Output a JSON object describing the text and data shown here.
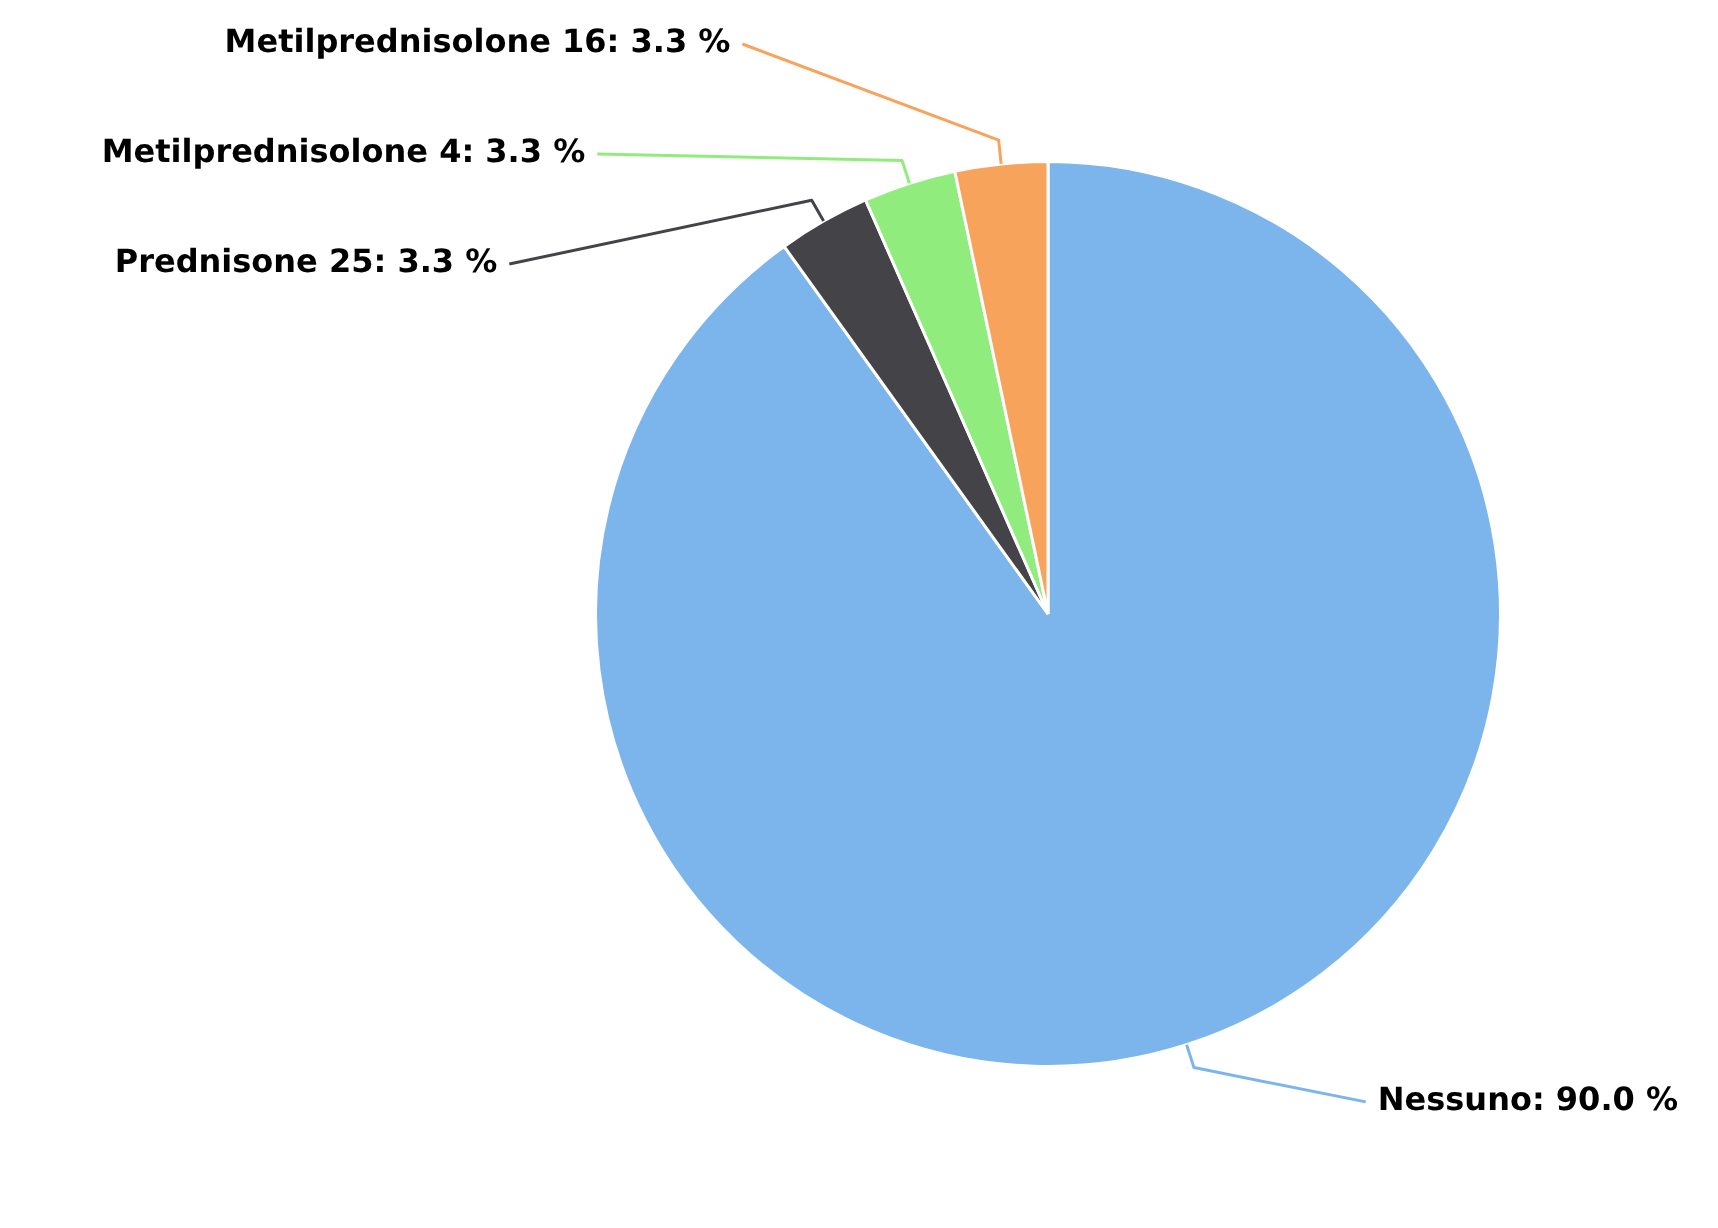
{
  "chart_data": {
    "type": "pie",
    "categories": [
      "Nessuno",
      "Prednisone 25",
      "Metilprednisolone 4",
      "Metilprednisolone 16"
    ],
    "values": [
      90.0,
      3.3,
      3.3,
      3.3
    ],
    "value_labels": [
      "90.0 %",
      "3.3 %",
      "3.3 %",
      "3.3 %"
    ],
    "colors": [
      "#7cb5ec",
      "#434348",
      "#90ed7d",
      "#f7a35c"
    ],
    "legend": false
  }
}
